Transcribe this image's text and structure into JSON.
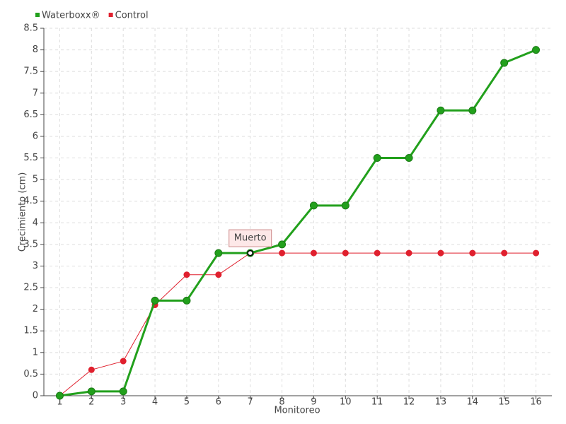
{
  "chart_data": {
    "type": "line",
    "xlabel": "Monitoreo",
    "ylabel": "Crecimiento (cm)",
    "categories": [
      "1",
      "2",
      "3",
      "4",
      "5",
      "6",
      "7",
      "8",
      "9",
      "10",
      "11",
      "12",
      "13",
      "14",
      "15",
      "16"
    ],
    "series": [
      {
        "name": "Waterboxx®",
        "color": "#22a01c",
        "values": [
          0,
          0.1,
          0.1,
          2.2,
          2.2,
          3.3,
          3.3,
          3.5,
          4.4,
          4.4,
          5.5,
          5.5,
          6.6,
          6.6,
          7.7,
          8
        ]
      },
      {
        "name": "Control",
        "color": "#e0202e",
        "values": [
          0,
          0.6,
          0.8,
          2.1,
          2.8,
          2.8,
          3.3,
          3.3,
          3.3,
          3.3,
          3.3,
          3.3,
          3.3,
          3.3,
          3.3,
          3.3
        ]
      }
    ],
    "annotations": [
      {
        "text": "Muerto",
        "x": "7",
        "y": 3.3
      }
    ],
    "ylim": [
      0,
      8.5
    ],
    "yticks": [
      0,
      0.5,
      1,
      1.5,
      2,
      2.5,
      3,
      3.5,
      4,
      4.5,
      5,
      5.5,
      6,
      6.5,
      7,
      7.5,
      8,
      8.5
    ],
    "grid": true,
    "legend": "top-left"
  }
}
